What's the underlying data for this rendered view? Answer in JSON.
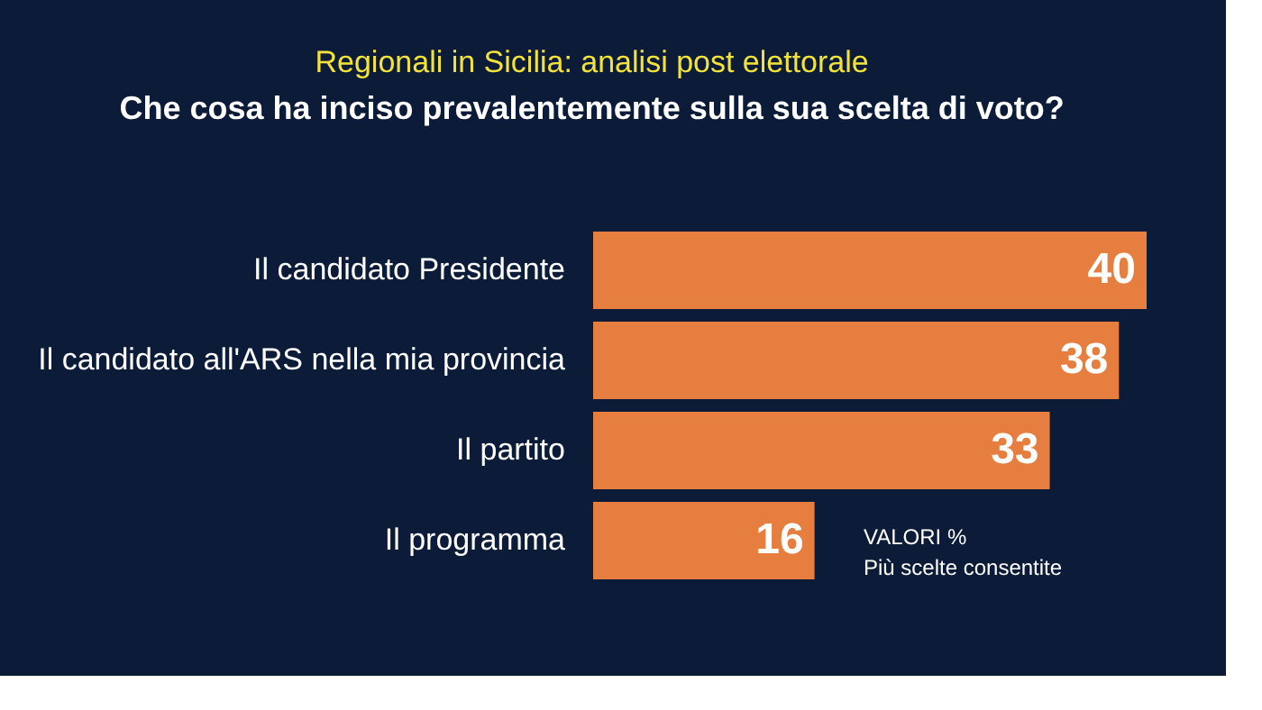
{
  "chart_data": {
    "type": "bar",
    "orientation": "horizontal",
    "title": "Regionali in Sicilia: analisi post elettorale",
    "subtitle": "Che cosa ha inciso prevalentemente sulla sua scelta di voto?",
    "categories": [
      "Il candidato Presidente",
      "Il candidato all'ARS nella mia provincia",
      "Il partito",
      "Il programma"
    ],
    "values": [
      40,
      38,
      33,
      16
    ],
    "color": "#e67e3f",
    "data_labels": true,
    "annotations": [
      "VALORI %",
      "Più scelte consentite"
    ]
  }
}
